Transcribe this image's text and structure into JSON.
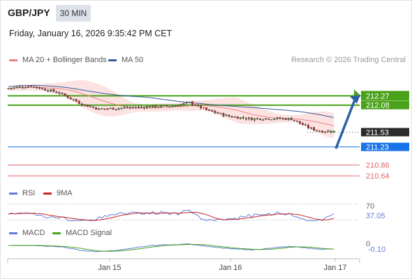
{
  "header": {
    "symbol": "GBP/JPY",
    "timeframe": "30 MIN",
    "datetime": "Friday, January 16, 2026 9:35:42 PM CET"
  },
  "legend": {
    "ma20_label": "MA 20 + Bollinger Bands",
    "ma50_label": "MA 50",
    "credit": "Research © 2026 Trading Central",
    "rsi_label": "RSI",
    "rsi_ma_label": "9MA",
    "macd_label": "MACD",
    "signal_label": "MACD Signal"
  },
  "colors": {
    "candle_up": "#2ca02c",
    "candle_down": "#d62728",
    "ma20": "#f08080",
    "bollinger_fill": "#fde2e2",
    "ma50": "#3a5a9a",
    "level_green": "#4aa21a",
    "level_blue": "#1a73e8",
    "level_red": "#e06666",
    "arrow": "#2e5fa8",
    "rsi": "#5b7fd6",
    "rsi_ma": "#cc2222",
    "macd": "#5b7fd6",
    "signal": "#4aa21a"
  },
  "chart_data": [
    {
      "type": "candlestick",
      "panel": "price",
      "x_tick_labels": [
        "Jan 15",
        "Jan 16",
        "Jan 17"
      ],
      "ylim": [
        210.5,
        212.8
      ],
      "series": [
        {
          "name": "MA 20 + Bollinger Bands"
        },
        {
          "name": "MA 50"
        }
      ],
      "levels": [
        {
          "label": "212.27",
          "value": 212.27,
          "color": "green",
          "marker": "arrow"
        },
        {
          "label": "212.08",
          "value": 212.08,
          "color": "green"
        },
        {
          "label": "211.53",
          "value": 211.53,
          "color": "current-price"
        },
        {
          "label": "211.23",
          "value": 211.23,
          "color": "blue"
        },
        {
          "label": "210.86",
          "value": 210.86,
          "color": "red"
        },
        {
          "label": "210.64",
          "value": 210.64,
          "color": "red"
        }
      ],
      "arrow_direction": "up"
    },
    {
      "type": "line",
      "panel": "rsi",
      "series": [
        {
          "name": "RSI"
        },
        {
          "name": "9MA"
        }
      ],
      "reference_lines": [
        70,
        30
      ],
      "labels": [
        {
          "text": "70"
        },
        {
          "text": "37.05"
        }
      ]
    },
    {
      "type": "line",
      "panel": "macd",
      "series": [
        {
          "name": "MACD"
        },
        {
          "name": "MACD Signal"
        }
      ],
      "labels": [
        {
          "text": "0"
        },
        {
          "text": "-0.10"
        }
      ]
    }
  ]
}
